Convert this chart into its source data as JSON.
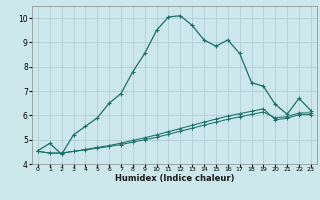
{
  "xlabel": "Humidex (Indice chaleur)",
  "xlim": [
    -0.5,
    23.5
  ],
  "ylim": [
    4,
    10.5
  ],
  "bg_color": "#cce8ec",
  "grid_color": "#b0ced4",
  "line_color": "#1a7068",
  "line1_x": [
    0,
    1,
    2,
    3,
    4,
    5,
    6,
    7,
    8,
    9,
    10,
    11,
    12,
    13,
    14,
    15,
    16,
    17,
    18,
    19,
    20,
    21,
    22,
    23
  ],
  "line1_y": [
    4.55,
    4.85,
    4.4,
    5.2,
    5.55,
    5.9,
    6.5,
    6.9,
    7.8,
    8.55,
    9.5,
    10.05,
    10.1,
    9.7,
    9.1,
    8.85,
    9.1,
    8.55,
    7.35,
    7.2,
    6.45,
    6.05,
    6.7,
    6.2
  ],
  "line2_x": [
    0,
    1,
    2,
    3,
    4,
    5,
    6,
    7,
    8,
    9,
    10,
    11,
    12,
    13,
    14,
    15,
    16,
    17,
    18,
    19,
    20,
    21,
    22,
    23
  ],
  "line2_y": [
    4.52,
    4.45,
    4.45,
    4.52,
    4.58,
    4.65,
    4.72,
    4.8,
    4.9,
    5.0,
    5.1,
    5.22,
    5.35,
    5.47,
    5.6,
    5.72,
    5.84,
    5.94,
    6.04,
    6.14,
    5.9,
    5.95,
    6.1,
    6.1
  ],
  "line3_x": [
    0,
    1,
    2,
    3,
    4,
    5,
    6,
    7,
    8,
    9,
    10,
    11,
    12,
    13,
    14,
    15,
    16,
    17,
    18,
    19,
    20,
    21,
    22,
    23
  ],
  "line3_y": [
    4.52,
    4.45,
    4.45,
    4.52,
    4.6,
    4.68,
    4.76,
    4.86,
    4.97,
    5.08,
    5.2,
    5.33,
    5.46,
    5.59,
    5.72,
    5.85,
    5.97,
    6.07,
    6.17,
    6.27,
    5.82,
    5.88,
    6.03,
    6.03
  ],
  "yticks": [
    4,
    5,
    6,
    7,
    8,
    9,
    10
  ],
  "xticks": [
    0,
    1,
    2,
    3,
    4,
    5,
    6,
    7,
    8,
    9,
    10,
    11,
    12,
    13,
    14,
    15,
    16,
    17,
    18,
    19,
    20,
    21,
    22,
    23
  ]
}
